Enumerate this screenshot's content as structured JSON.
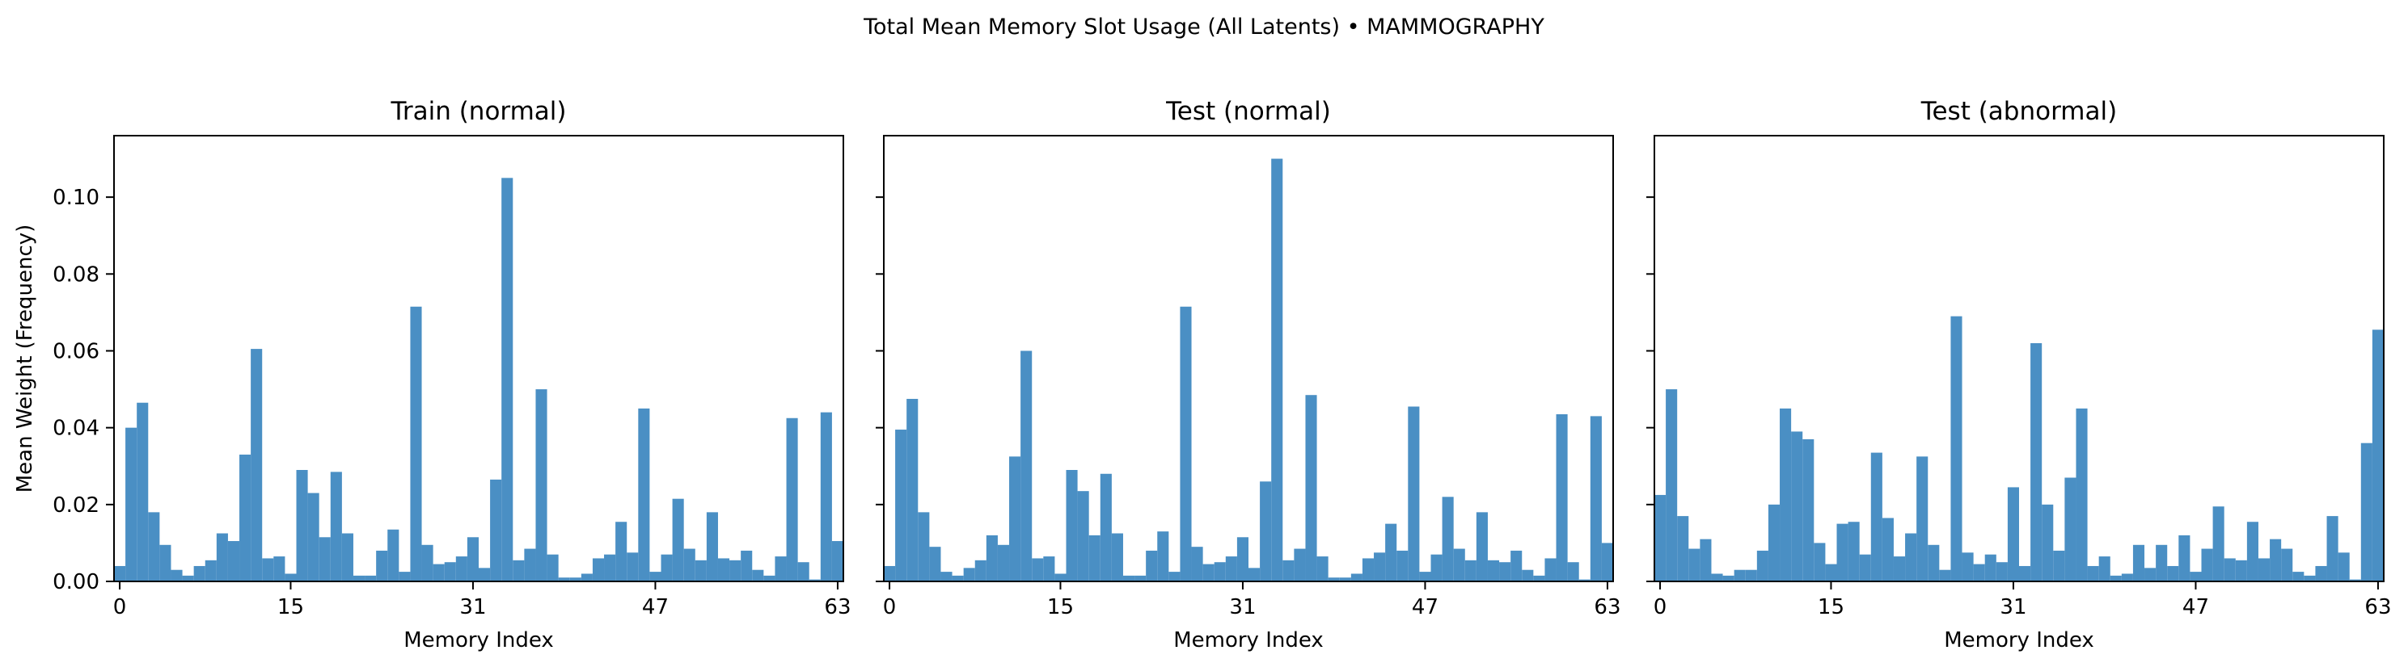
{
  "figure": {
    "suptitle": "Total Mean Memory Slot Usage (All Latents) • MAMMOGRAPHY",
    "bar_color": "#4a8fc4"
  },
  "chart_data": [
    {
      "type": "bar",
      "title": "Train (normal)",
      "xlabel": "Memory Index",
      "ylabel": "Mean Weight (Frequency)",
      "xticks": [
        0,
        15,
        31,
        47,
        63
      ],
      "yticks": [
        "0.00",
        "0.02",
        "0.04",
        "0.06",
        "0.08",
        "0.10"
      ],
      "ylim": [
        0,
        0.116
      ],
      "xlim": [
        -0.5,
        63.5
      ],
      "categories": [
        0,
        1,
        2,
        3,
        4,
        5,
        6,
        7,
        8,
        9,
        10,
        11,
        12,
        13,
        14,
        15,
        16,
        17,
        18,
        19,
        20,
        21,
        22,
        23,
        24,
        25,
        26,
        27,
        28,
        29,
        30,
        31,
        32,
        33,
        34,
        35,
        36,
        37,
        38,
        39,
        40,
        41,
        42,
        43,
        44,
        45,
        46,
        47,
        48,
        49,
        50,
        51,
        52,
        53,
        54,
        55,
        56,
        57,
        58,
        59,
        60,
        61,
        62,
        63
      ],
      "values": [
        0.004,
        0.04,
        0.0465,
        0.018,
        0.0095,
        0.003,
        0.0015,
        0.004,
        0.0055,
        0.0125,
        0.0105,
        0.033,
        0.0605,
        0.006,
        0.0065,
        0.002,
        0.029,
        0.023,
        0.0115,
        0.0285,
        0.0125,
        0.0015,
        0.0015,
        0.008,
        0.0135,
        0.0025,
        0.0715,
        0.0095,
        0.0045,
        0.005,
        0.0065,
        0.0115,
        0.0035,
        0.0265,
        0.105,
        0.0055,
        0.0085,
        0.05,
        0.007,
        0.001,
        0.001,
        0.002,
        0.006,
        0.007,
        0.0155,
        0.0075,
        0.045,
        0.0025,
        0.007,
        0.0215,
        0.0085,
        0.0055,
        0.018,
        0.006,
        0.0055,
        0.008,
        0.003,
        0.0015,
        0.0065,
        0.0425,
        0.005,
        0.0005,
        0.044,
        0.0105
      ],
      "grid": false,
      "legend": "none"
    },
    {
      "type": "bar",
      "title": "Test (normal)",
      "xlabel": "Memory Index",
      "ylabel": "",
      "xticks": [
        0,
        15,
        31,
        47,
        63
      ],
      "yticks": [],
      "ylim": [
        0,
        0.116
      ],
      "xlim": [
        -0.5,
        63.5
      ],
      "categories": [
        0,
        1,
        2,
        3,
        4,
        5,
        6,
        7,
        8,
        9,
        10,
        11,
        12,
        13,
        14,
        15,
        16,
        17,
        18,
        19,
        20,
        21,
        22,
        23,
        24,
        25,
        26,
        27,
        28,
        29,
        30,
        31,
        32,
        33,
        34,
        35,
        36,
        37,
        38,
        39,
        40,
        41,
        42,
        43,
        44,
        45,
        46,
        47,
        48,
        49,
        50,
        51,
        52,
        53,
        54,
        55,
        56,
        57,
        58,
        59,
        60,
        61,
        62,
        63
      ],
      "values": [
        0.004,
        0.0395,
        0.0475,
        0.018,
        0.009,
        0.0025,
        0.0015,
        0.0035,
        0.0055,
        0.012,
        0.0095,
        0.0325,
        0.06,
        0.006,
        0.0065,
        0.002,
        0.029,
        0.0235,
        0.012,
        0.028,
        0.0125,
        0.0015,
        0.0015,
        0.008,
        0.013,
        0.0025,
        0.0715,
        0.009,
        0.0045,
        0.005,
        0.0065,
        0.0115,
        0.0035,
        0.026,
        0.11,
        0.0055,
        0.0085,
        0.0485,
        0.0065,
        0.001,
        0.001,
        0.002,
        0.006,
        0.0075,
        0.015,
        0.008,
        0.0455,
        0.0025,
        0.007,
        0.022,
        0.0085,
        0.0055,
        0.018,
        0.0055,
        0.005,
        0.008,
        0.003,
        0.0015,
        0.006,
        0.0435,
        0.005,
        0.0005,
        0.043,
        0.01
      ],
      "grid": false,
      "legend": "none"
    },
    {
      "type": "bar",
      "title": "Test (abnormal)",
      "xlabel": "Memory Index",
      "ylabel": "",
      "xticks": [
        0,
        15,
        31,
        47,
        63
      ],
      "yticks": [],
      "ylim": [
        0,
        0.116
      ],
      "xlim": [
        -0.5,
        63.5
      ],
      "categories": [
        0,
        1,
        2,
        3,
        4,
        5,
        6,
        7,
        8,
        9,
        10,
        11,
        12,
        13,
        14,
        15,
        16,
        17,
        18,
        19,
        20,
        21,
        22,
        23,
        24,
        25,
        26,
        27,
        28,
        29,
        30,
        31,
        32,
        33,
        34,
        35,
        36,
        37,
        38,
        39,
        40,
        41,
        42,
        43,
        44,
        45,
        46,
        47,
        48,
        49,
        50,
        51,
        52,
        53,
        54,
        55,
        56,
        57,
        58,
        59,
        60,
        61,
        62,
        63
      ],
      "values": [
        0.0225,
        0.05,
        0.017,
        0.0085,
        0.011,
        0.002,
        0.0015,
        0.003,
        0.003,
        0.008,
        0.02,
        0.045,
        0.039,
        0.037,
        0.01,
        0.0045,
        0.015,
        0.0155,
        0.007,
        0.0335,
        0.0165,
        0.0065,
        0.0125,
        0.0325,
        0.0095,
        0.003,
        0.069,
        0.0075,
        0.0045,
        0.007,
        0.005,
        0.0245,
        0.004,
        0.062,
        0.02,
        0.008,
        0.027,
        0.045,
        0.004,
        0.0065,
        0.0015,
        0.002,
        0.0095,
        0.0035,
        0.0095,
        0.004,
        0.012,
        0.0025,
        0.0085,
        0.0195,
        0.006,
        0.0055,
        0.0155,
        0.006,
        0.011,
        0.0085,
        0.0025,
        0.0015,
        0.004,
        0.017,
        0.0075,
        0.0005,
        0.036,
        0.0655
      ],
      "grid": false,
      "legend": "none"
    }
  ]
}
